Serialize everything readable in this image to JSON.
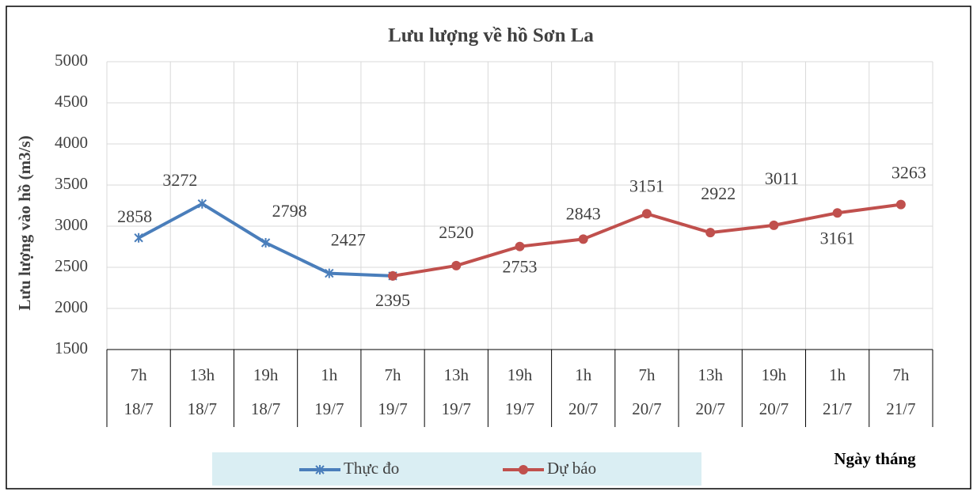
{
  "chart_data": {
    "type": "line",
    "title": "Lưu lượng về hồ Sơn La",
    "y_label": "Lưu lượng vào hồ (m3/s)",
    "x_label": "Ngày tháng",
    "categories": [
      [
        "7h",
        "18/7"
      ],
      [
        "13h",
        "18/7"
      ],
      [
        "19h",
        "18/7"
      ],
      [
        "1h",
        "19/7"
      ],
      [
        "7h",
        "19/7"
      ],
      [
        "13h",
        "19/7"
      ],
      [
        "19h",
        "19/7"
      ],
      [
        "1h",
        "20/7"
      ],
      [
        "7h",
        "20/7"
      ],
      [
        "13h",
        "20/7"
      ],
      [
        "19h",
        "20/7"
      ],
      [
        "1h",
        "21/7"
      ],
      [
        "7h",
        "21/7"
      ]
    ],
    "series": [
      {
        "name": "Thực đo",
        "color": "#4a7ebb",
        "marker": "star",
        "values": [
          2858,
          3272,
          2798,
          2427,
          2395,
          null,
          null,
          null,
          null,
          null,
          null,
          null,
          null
        ]
      },
      {
        "name": "Dự báo",
        "color": "#c0504d",
        "marker": "circle",
        "values": [
          null,
          null,
          null,
          null,
          2395,
          2520,
          2753,
          2843,
          3151,
          2922,
          3011,
          3161,
          3263
        ]
      }
    ],
    "ylim": [
      1500,
      5000
    ],
    "yticks": [
      1500,
      2000,
      2500,
      3000,
      3500,
      4000,
      4500,
      5000
    ],
    "grid": true,
    "legend": "bottom"
  }
}
